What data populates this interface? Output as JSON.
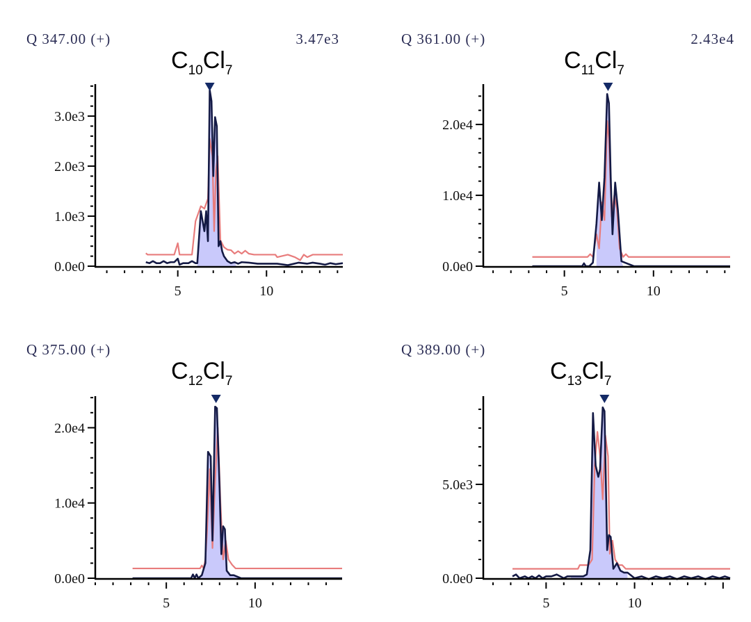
{
  "colors": {
    "trace_main": "#141a45",
    "trace_ref": "#e87c7c",
    "peak_fill": "#c9c9fb",
    "peak_marker": "#142a66",
    "axis": "#000000",
    "header_text": "#2b2d55"
  },
  "chart_data": [
    {
      "type": "line",
      "header": "Q 347.00 (+)",
      "max_intensity": "3.47e3",
      "formula": {
        "base": "C",
        "n_c": "10",
        "element": "Cl",
        "n_cl": "7"
      },
      "xlim": [
        0.35,
        14.3
      ],
      "ylim": [
        0,
        3640
      ],
      "x_ticks": [
        5,
        10
      ],
      "x_tick_labels": [
        "5",
        "10"
      ],
      "x_minor_step": 1,
      "y_ticks": [
        0,
        1000,
        2000,
        3000
      ],
      "y_tick_labels": [
        "0.0e0",
        "1.0e3",
        "2.0e3",
        "3.0e3"
      ],
      "y_minor_step": 200,
      "peak_marker_x": 6.8,
      "fill_range": [
        6.1,
        8.3
      ],
      "series": [
        {
          "name": "reference",
          "x": [
            3.2,
            3.3,
            4.8,
            5.0,
            5.1,
            5.3,
            5.8,
            6.0,
            6.3,
            6.5,
            6.7,
            6.8,
            6.95,
            7.05,
            7.15,
            7.25,
            7.4,
            7.6,
            7.8,
            8.0,
            8.2,
            8.4,
            8.6,
            8.8,
            9.0,
            9.3,
            10.5,
            10.6,
            11.2,
            11.6,
            11.9,
            12.1,
            12.3,
            12.6,
            14.3
          ],
          "y": [
            260,
            230,
            230,
            460,
            230,
            230,
            230,
            900,
            1200,
            1150,
            1350,
            2550,
            2200,
            700,
            1900,
            2200,
            520,
            380,
            330,
            320,
            250,
            300,
            250,
            310,
            250,
            230,
            230,
            180,
            230,
            180,
            120,
            230,
            180,
            230,
            230
          ]
        },
        {
          "name": "sample",
          "x": [
            3.2,
            3.4,
            3.6,
            3.8,
            4.0,
            4.2,
            4.4,
            4.6,
            4.8,
            5.0,
            5.1,
            5.3,
            5.6,
            5.8,
            6.0,
            6.1,
            6.3,
            6.5,
            6.6,
            6.7,
            6.8,
            6.9,
            7.0,
            7.1,
            7.2,
            7.3,
            7.4,
            7.5,
            7.6,
            7.8,
            8.0,
            8.2,
            8.4,
            8.6,
            9.0,
            9.5,
            10.0,
            10.6,
            11.2,
            11.8,
            12.3,
            12.6,
            13.0,
            13.3,
            13.6,
            13.9,
            14.3
          ],
          "y": [
            80,
            60,
            100,
            60,
            60,
            100,
            60,
            80,
            80,
            150,
            30,
            60,
            60,
            100,
            60,
            60,
            1100,
            700,
            1100,
            500,
            3520,
            3300,
            1800,
            2980,
            2800,
            400,
            500,
            300,
            200,
            100,
            60,
            80,
            50,
            80,
            70,
            50,
            50,
            50,
            20,
            70,
            50,
            70,
            50,
            30,
            60,
            40,
            60
          ]
        }
      ]
    },
    {
      "type": "line",
      "header": "Q 361.00 (+)",
      "max_intensity": "2.43e4",
      "formula": {
        "base": "C",
        "n_c": "11",
        "element": "Cl",
        "n_cl": "7"
      },
      "xlim": [
        0.45,
        14.3
      ],
      "ylim": [
        0,
        25700
      ],
      "x_ticks": [
        5,
        10
      ],
      "x_tick_labels": [
        "5",
        "10"
      ],
      "x_minor_step": 1,
      "y_ticks": [
        0,
        10000,
        20000
      ],
      "y_tick_labels": [
        "0.0e0",
        "1.0e4",
        "2.0e4"
      ],
      "y_minor_step": 2000,
      "peak_marker_x": 7.45,
      "fill_range": [
        6.8,
        8.3
      ],
      "series": [
        {
          "name": "reference",
          "x": [
            3.2,
            6.3,
            6.45,
            6.6,
            6.8,
            6.95,
            7.1,
            7.25,
            7.4,
            7.5,
            7.65,
            7.8,
            7.95,
            8.1,
            8.3,
            8.45,
            8.6,
            14.3
          ],
          "y": [
            1300,
            1300,
            1700,
            1300,
            4500,
            2500,
            9000,
            6500,
            20500,
            18000,
            7000,
            10000,
            8000,
            2500,
            1300,
            1700,
            1300,
            1300
          ]
        },
        {
          "name": "sample",
          "x": [
            3.2,
            6.0,
            6.1,
            6.2,
            6.4,
            6.6,
            6.8,
            6.95,
            7.1,
            7.25,
            7.4,
            7.5,
            7.6,
            7.7,
            7.85,
            8.0,
            8.2,
            8.4,
            8.6,
            8.9,
            14.3
          ],
          "y": [
            0,
            0,
            400,
            0,
            0,
            500,
            6000,
            11800,
            6500,
            12500,
            24300,
            23000,
            12500,
            4500,
            11800,
            8000,
            700,
            500,
            300,
            0,
            0
          ]
        }
      ]
    },
    {
      "type": "line",
      "header": "Q 375.00 (+)",
      "max_intensity": "",
      "formula": {
        "base": "C",
        "n_c": "12",
        "element": "Cl",
        "n_cl": "7"
      },
      "xlim": [
        1.0,
        14.9
      ],
      "ylim": [
        0,
        24200
      ],
      "x_ticks": [
        5,
        10
      ],
      "x_tick_labels": [
        "5",
        "10"
      ],
      "x_minor_step": 1,
      "y_ticks": [
        0,
        10000,
        20000
      ],
      "y_tick_labels": [
        "0.0e0",
        "1.0e4",
        "2.0e4"
      ],
      "y_minor_step": 2000,
      "peak_marker_x": 7.8,
      "fill_range": [
        6.8,
        9.3
      ],
      "series": [
        {
          "name": "reference",
          "x": [
            3.1,
            6.9,
            7.0,
            7.1,
            7.2,
            7.3,
            7.45,
            7.6,
            7.75,
            7.9,
            8.05,
            8.2,
            8.35,
            8.5,
            8.7,
            8.9,
            14.9
          ],
          "y": [
            1300,
            1300,
            1700,
            1300,
            2500,
            6500,
            14500,
            4000,
            13000,
            20000,
            10000,
            2500,
            5000,
            2500,
            1800,
            1300,
            1300
          ]
        },
        {
          "name": "sample",
          "x": [
            3.1,
            6.4,
            6.5,
            6.6,
            6.7,
            6.8,
            7.0,
            7.2,
            7.35,
            7.5,
            7.6,
            7.75,
            7.85,
            8.0,
            8.1,
            8.2,
            8.3,
            8.4,
            8.6,
            8.8,
            9.0,
            9.2,
            14.9
          ],
          "y": [
            0,
            0,
            500,
            0,
            500,
            0,
            400,
            2000,
            16800,
            16200,
            5000,
            22800,
            22600,
            12000,
            3200,
            6900,
            6500,
            1000,
            400,
            400,
            200,
            0,
            0
          ]
        }
      ]
    },
    {
      "type": "line",
      "header": "Q 389.00 (+)",
      "max_intensity": "",
      "formula": {
        "base": "C",
        "n_c": "13",
        "element": "Cl",
        "n_cl": "7"
      },
      "xlim": [
        1.45,
        15.4
      ],
      "ylim": [
        0,
        9700
      ],
      "x_ticks": [
        5,
        10
      ],
      "x_tick_labels": [
        "5",
        "10"
      ],
      "x_minor_step": 1,
      "y_ticks": [
        0,
        5000
      ],
      "y_tick_labels": [
        "0.0e0",
        "5.0e3"
      ],
      "y_minor_step": 1000,
      "peak_marker_x": 8.3,
      "fill_range": [
        6.4,
        9.6
      ],
      "series": [
        {
          "name": "reference",
          "x": [
            3.1,
            6.8,
            6.9,
            7.4,
            7.6,
            7.75,
            7.9,
            8.05,
            8.2,
            8.35,
            8.5,
            8.6,
            8.75,
            8.9,
            9.1,
            9.3,
            9.5,
            15.4
          ],
          "y": [
            500,
            500,
            700,
            700,
            1000,
            6000,
            7800,
            6500,
            4200,
            7600,
            6500,
            1300,
            2000,
            1000,
            700,
            700,
            500,
            500
          ]
        },
        {
          "name": "sample",
          "x": [
            3.1,
            3.3,
            3.5,
            3.8,
            4.0,
            4.2,
            4.4,
            4.6,
            4.8,
            5.0,
            5.3,
            5.6,
            6.0,
            6.2,
            6.4,
            7.1,
            7.3,
            7.5,
            7.65,
            7.8,
            7.95,
            8.05,
            8.2,
            8.3,
            8.45,
            8.55,
            8.65,
            8.8,
            9.0,
            9.2,
            9.4,
            9.6,
            10.0,
            10.4,
            10.8,
            11.2,
            11.6,
            12.0,
            12.4,
            12.8,
            13.2,
            13.6,
            14.0,
            14.4,
            14.8,
            15.1,
            15.4
          ],
          "y": [
            100,
            200,
            0,
            100,
            0,
            100,
            0,
            150,
            0,
            100,
            100,
            200,
            0,
            100,
            100,
            100,
            200,
            1500,
            8800,
            6000,
            5400,
            5800,
            9100,
            8900,
            1500,
            2300,
            2200,
            500,
            800,
            400,
            300,
            300,
            0,
            100,
            -50,
            100,
            0,
            100,
            -50,
            100,
            0,
            100,
            -50,
            100,
            0,
            100,
            0
          ]
        }
      ]
    }
  ]
}
